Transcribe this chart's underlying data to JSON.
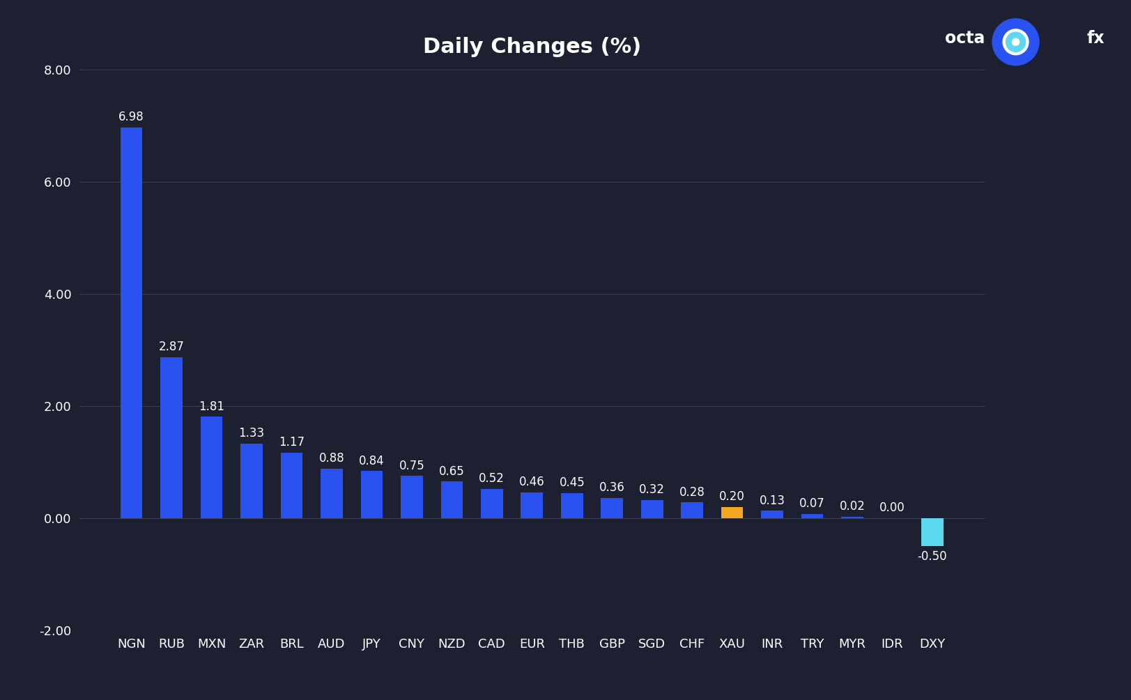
{
  "title": "Daily Changes (%)",
  "categories": [
    "NGN",
    "RUB",
    "MXN",
    "ZAR",
    "BRL",
    "AUD",
    "JPY",
    "CNY",
    "NZD",
    "CAD",
    "EUR",
    "THB",
    "GBP",
    "SGD",
    "CHF",
    "XAU",
    "INR",
    "TRY",
    "MYR",
    "IDR",
    "DXY"
  ],
  "values": [
    6.98,
    2.87,
    1.81,
    1.33,
    1.17,
    0.88,
    0.84,
    0.75,
    0.65,
    0.52,
    0.46,
    0.45,
    0.36,
    0.32,
    0.28,
    0.2,
    0.13,
    0.07,
    0.02,
    0.0,
    -0.5
  ],
  "bar_colors": [
    "#2952f0",
    "#2952f0",
    "#2952f0",
    "#2952f0",
    "#2952f0",
    "#2952f0",
    "#2952f0",
    "#2952f0",
    "#2952f0",
    "#2952f0",
    "#2952f0",
    "#2952f0",
    "#2952f0",
    "#2952f0",
    "#2952f0",
    "#f5a623",
    "#2952f0",
    "#2952f0",
    "#2952f0",
    "#2952f0",
    "#5dd8f0"
  ],
  "ylim": [
    -2.0,
    8.0
  ],
  "yticks": [
    -2.0,
    0.0,
    2.0,
    4.0,
    6.0,
    8.0
  ],
  "background_color": "#1c2030",
  "text_color": "#ffffff",
  "grid_color": "#3a3f52",
  "title_fontsize": 22,
  "tick_fontsize": 13,
  "value_fontsize": 12,
  "bar_width": 0.55,
  "logo_circle_color": "#2952f0",
  "logo_inner_color": "#5dd8f0"
}
